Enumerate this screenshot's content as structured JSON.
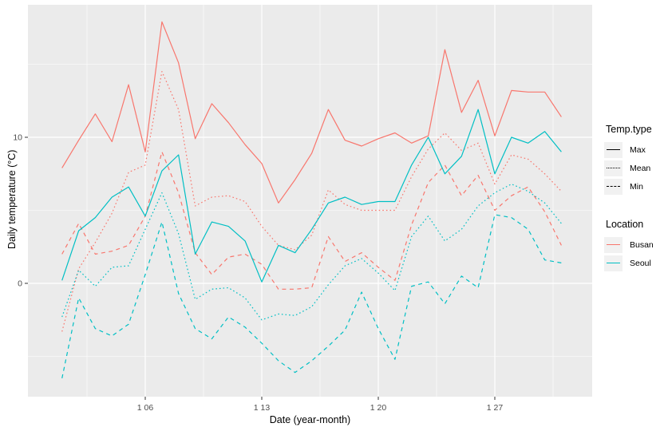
{
  "axes": {
    "x_title": "Date (year-month)",
    "y_title": "Daily temperature (°C)",
    "x_tick_labels": [
      "1 06",
      "1 13",
      "1 20",
      "1 27"
    ],
    "y_tick_labels": [
      "10",
      "0"
    ]
  },
  "legend": {
    "temp_type": {
      "title": "Temp.type",
      "items": [
        {
          "label": "Max",
          "linestyle": "solid"
        },
        {
          "label": "Mean",
          "linestyle": "dotted"
        },
        {
          "label": "Min",
          "linestyle": "dashed"
        }
      ]
    },
    "location": {
      "title": "Location",
      "items": [
        {
          "label": "Busan",
          "color": "#F8766D"
        },
        {
          "label": "Seoul",
          "color": "#00BFC4"
        }
      ]
    }
  },
  "chart_data": {
    "type": "line",
    "title": "",
    "xlabel": "Date (year-month)",
    "ylabel": "Daily temperature (°C)",
    "x_unit": "day of January",
    "x": [
      1,
      2,
      3,
      4,
      5,
      6,
      7,
      8,
      9,
      10,
      11,
      12,
      13,
      14,
      15,
      16,
      17,
      18,
      19,
      20,
      21,
      22,
      23,
      24,
      25,
      26,
      27,
      28,
      29,
      30,
      31
    ],
    "x_major_ticks": [
      {
        "day": 6,
        "label": "1 06"
      },
      {
        "day": 13,
        "label": "1 13"
      },
      {
        "day": 20,
        "label": "1 20"
      },
      {
        "day": 27,
        "label": "1 27"
      }
    ],
    "x_minor_gridline_days": [
      2.5,
      9.5,
      16.5,
      23.5,
      30.5
    ],
    "y_major_ticks": [
      {
        "value": 10,
        "label": "10"
      },
      {
        "value": 0,
        "label": "0"
      }
    ],
    "y_minor_gridlines": [
      15,
      5,
      -5
    ],
    "ylim": [
      -7.8,
      19.1
    ],
    "xlim": [
      -1.0,
      32.8
    ],
    "grid": true,
    "legend_position": "right",
    "panel_background": "#EBEBEB",
    "gridline_color": "#FFFFFF",
    "series": [
      {
        "name": "Busan Max",
        "location": "Busan",
        "temp_type": "Max",
        "color": "#F8766D",
        "linestyle": "solid",
        "values": [
          7.9,
          9.8,
          11.6,
          9.7,
          13.6,
          9.0,
          17.9,
          15.1,
          9.9,
          12.3,
          11.0,
          9.5,
          8.2,
          5.5,
          7.1,
          8.9,
          11.9,
          9.8,
          9.4,
          9.9,
          10.3,
          9.6,
          10.1,
          16.0,
          11.7,
          13.9,
          10.1,
          13.2,
          13.1,
          13.1,
          11.4
        ]
      },
      {
        "name": "Busan Mean",
        "location": "Busan",
        "temp_type": "Mean",
        "color": "#F8766D",
        "linestyle": "dotted",
        "values": [
          -3.3,
          1.0,
          2.8,
          4.8,
          7.6,
          8.1,
          14.5,
          11.9,
          5.3,
          5.9,
          6.0,
          5.6,
          3.9,
          2.6,
          2.3,
          3.3,
          6.4,
          5.4,
          5.0,
          5.0,
          5.0,
          7.3,
          9.2,
          10.3,
          9.1,
          9.6,
          6.8,
          8.8,
          8.5,
          7.5,
          6.3
        ]
      },
      {
        "name": "Busan Min",
        "location": "Busan",
        "temp_type": "Min",
        "color": "#F8766D",
        "linestyle": "dashed",
        "values": [
          2.0,
          4.1,
          2.0,
          2.2,
          2.6,
          4.6,
          9.0,
          6.2,
          2.1,
          0.6,
          1.8,
          2.0,
          1.3,
          -0.4,
          -0.4,
          -0.3,
          3.2,
          1.5,
          2.1,
          1.1,
          0.2,
          4.0,
          6.9,
          8.1,
          6.0,
          7.4,
          5.0,
          6.0,
          6.6,
          4.9,
          2.6
        ]
      },
      {
        "name": "Seoul Max",
        "location": "Seoul",
        "temp_type": "Max",
        "color": "#00BFC4",
        "linestyle": "solid",
        "values": [
          0.2,
          3.6,
          4.5,
          5.9,
          6.6,
          4.6,
          7.7,
          8.8,
          2.0,
          4.2,
          3.9,
          2.9,
          0.1,
          2.6,
          2.1,
          3.7,
          5.5,
          5.9,
          5.4,
          5.6,
          5.6,
          8.1,
          10.0,
          7.5,
          8.7,
          11.9,
          7.5,
          10.0,
          9.6,
          10.4,
          9.0
        ]
      },
      {
        "name": "Seoul Mean",
        "location": "Seoul",
        "temp_type": "Mean",
        "color": "#00BFC4",
        "linestyle": "dotted",
        "values": [
          -2.3,
          0.9,
          -0.2,
          1.1,
          1.2,
          3.7,
          6.2,
          3.4,
          -1.1,
          -0.4,
          -0.3,
          -1.0,
          -2.5,
          -2.1,
          -2.2,
          -1.6,
          -0.1,
          1.2,
          1.7,
          0.7,
          -0.5,
          3.2,
          4.6,
          2.9,
          3.7,
          5.3,
          6.2,
          6.8,
          6.3,
          5.5,
          4.1
        ]
      },
      {
        "name": "Seoul Min",
        "location": "Seoul",
        "temp_type": "Min",
        "color": "#00BFC4",
        "linestyle": "dashed",
        "values": [
          -6.5,
          -1.0,
          -3.1,
          -3.6,
          -2.8,
          0.6,
          4.2,
          -0.7,
          -3.1,
          -3.8,
          -2.3,
          -3.0,
          -4.1,
          -5.3,
          -6.1,
          -5.3,
          -4.3,
          -3.2,
          -0.6,
          -3.1,
          -5.2,
          -0.2,
          0.1,
          -1.4,
          0.5,
          -0.3,
          4.7,
          4.5,
          3.7,
          1.6,
          1.4
        ]
      }
    ]
  }
}
